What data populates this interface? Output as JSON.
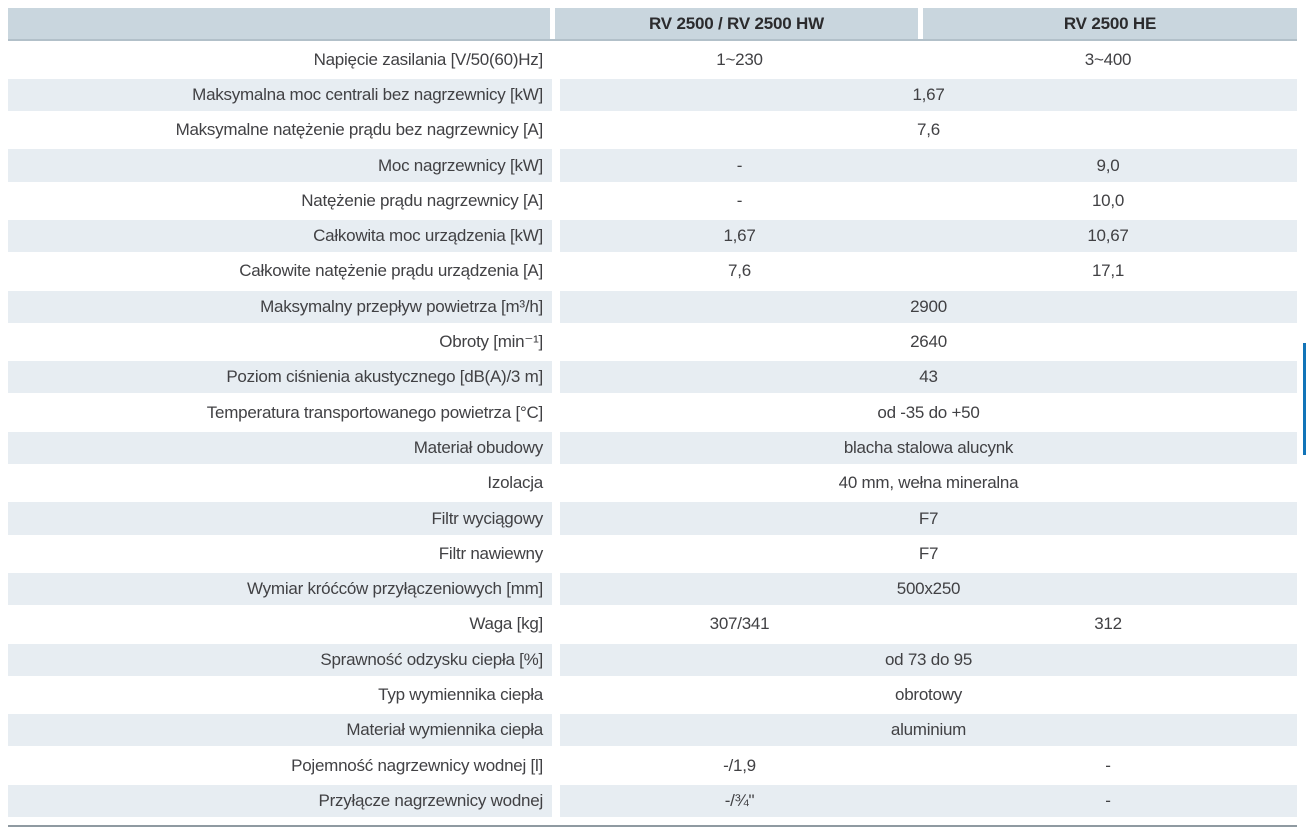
{
  "colors": {
    "header_bg": "#c9d6de",
    "band_bg": "#e7edf2",
    "header_border": "#b2c0c9",
    "bottom_line": "#8f9aa1",
    "accent_bar": "#1274b8",
    "text": "#414144",
    "header_text": "#2b2b2d"
  },
  "table": {
    "header": {
      "col1": "",
      "col2": "RV 2500 / RV 2500 HW",
      "col3": "RV 2500 HE"
    },
    "rows": [
      {
        "label": "Napięcie zasilania [V/50(60)Hz]",
        "type": "split",
        "v1": "1~230",
        "v2": "3~400"
      },
      {
        "label": "Maksymalna moc centrali bez nagrzewnicy [kW]",
        "type": "span",
        "value": "1,67"
      },
      {
        "label": "Maksymalne natężenie prądu bez nagrzewnicy [A]",
        "type": "span",
        "value": "7,6"
      },
      {
        "label": "Moc nagrzewnicy [kW]",
        "type": "split",
        "v1": "-",
        "v2": "9,0"
      },
      {
        "label": "Natężenie prądu nagrzewnicy [A]",
        "type": "split",
        "v1": "-",
        "v2": "10,0"
      },
      {
        "label": "Całkowita moc urządzenia [kW]",
        "type": "split",
        "v1": "1,67",
        "v2": "10,67"
      },
      {
        "label": "Całkowite natężenie prądu urządzenia [A]",
        "type": "split",
        "v1": "7,6",
        "v2": "17,1"
      },
      {
        "label": "Maksymalny przepływ powietrza [m³/h]",
        "type": "span",
        "value": "2900"
      },
      {
        "label": "Obroty [min⁻¹]",
        "type": "span",
        "value": "2640"
      },
      {
        "label": "Poziom ciśnienia akustycznego [dB(A)/3 m]",
        "type": "span",
        "value": "43"
      },
      {
        "label": "Temperatura transportowanego powietrza [°C]",
        "type": "span",
        "value": "od -35 do +50"
      },
      {
        "label": "Materiał obudowy",
        "type": "span",
        "value": "blacha stalowa alucynk"
      },
      {
        "label": "Izolacja",
        "type": "span",
        "value": "40 mm, wełna mineralna"
      },
      {
        "label": "Filtr wyciągowy",
        "type": "span",
        "value": "F7"
      },
      {
        "label": "Filtr nawiewny",
        "type": "span",
        "value": "F7"
      },
      {
        "label": "Wymiar króćców przyłączeniowych [mm]",
        "type": "span",
        "value": "500x250"
      },
      {
        "label": "Waga [kg]",
        "type": "split",
        "v1": "307/341",
        "v2": "312"
      },
      {
        "label": "Sprawność odzysku ciepła [%]",
        "type": "span",
        "value": "od 73 do 95"
      },
      {
        "label": "Typ wymiennika ciepła",
        "type": "span",
        "value": "obrotowy"
      },
      {
        "label": "Materiał wymiennika ciepła",
        "type": "span",
        "value": "aluminium"
      },
      {
        "label": "Pojemność nagrzewnicy wodnej [l]",
        "type": "split",
        "v1": "-/1,9",
        "v2": "-"
      },
      {
        "label": "Przyłącze nagrzewnicy wodnej",
        "type": "split",
        "v1": "-/¾\"",
        "v2": "-"
      }
    ]
  }
}
